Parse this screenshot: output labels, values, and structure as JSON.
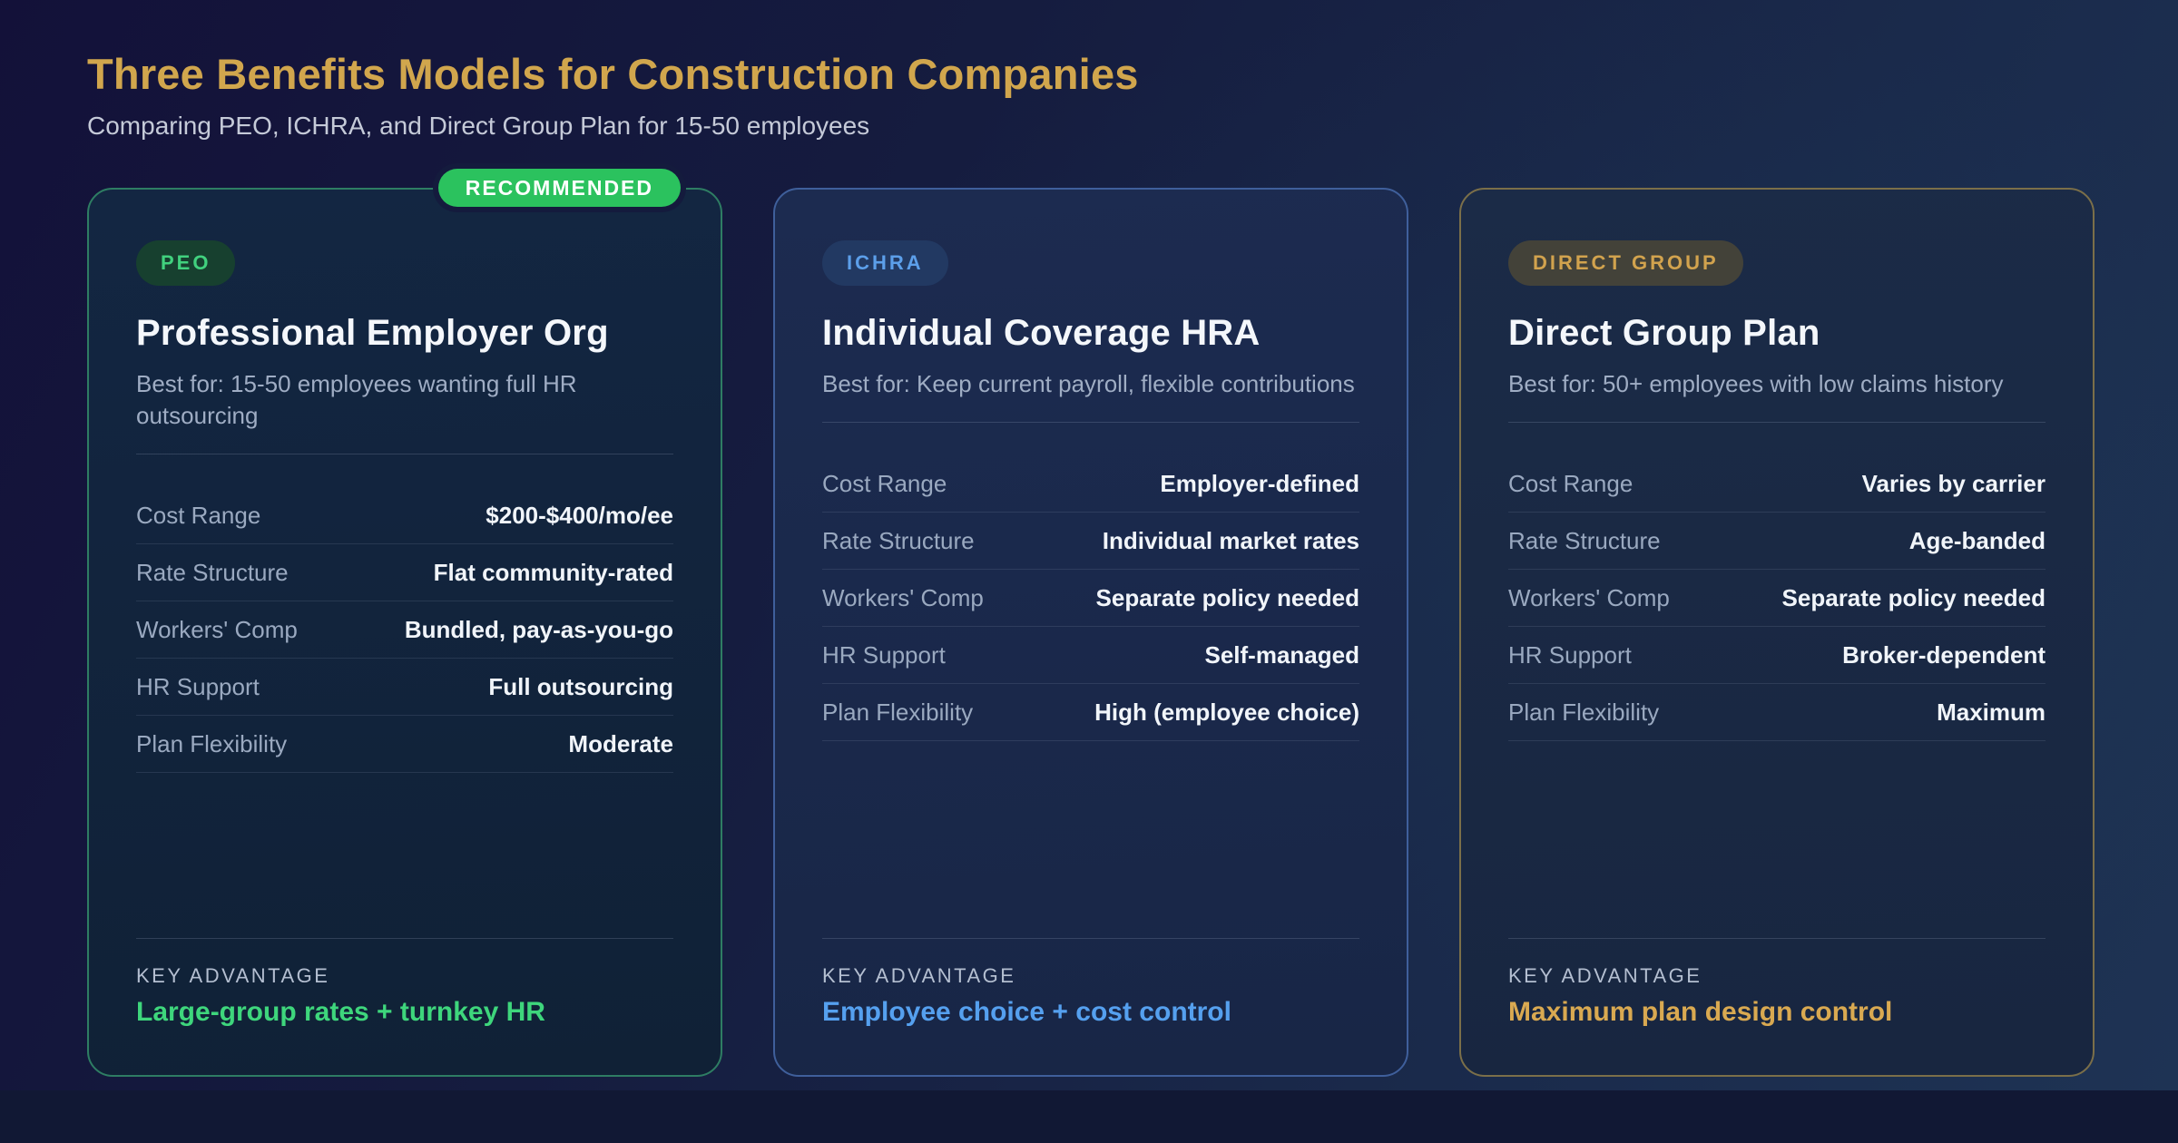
{
  "header": {
    "title": "Three Benefits Models for Construction Companies",
    "subtitle": "Comparing PEO, ICHRA, and Direct Group Plan for 15-50 employees"
  },
  "row_labels": [
    "Cost Range",
    "Rate Structure",
    "Workers' Comp",
    "HR Support",
    "Plan Flexibility"
  ],
  "key_advantage_label": "KEY ADVANTAGE",
  "cards": [
    {
      "id": "peo",
      "ribbon": "RECOMMENDED",
      "badge": "PEO",
      "title": "Professional Employer Org",
      "best_for": "Best for: 15-50 employees wanting full HR outsourcing",
      "values": [
        "$200-$400/mo/ee",
        "Flat community-rated",
        "Bundled, pay-as-you-go",
        "Full outsourcing",
        "Moderate"
      ],
      "key_advantage": "Large-group rates + turnkey HR",
      "accent_color": "#3ed67c"
    },
    {
      "id": "ichra",
      "badge": "ICHRA",
      "title": "Individual Coverage HRA",
      "best_for": "Best for: Keep current payroll, flexible contributions",
      "values": [
        "Employer-defined",
        "Individual market rates",
        "Separate policy needed",
        "Self-managed",
        "High (employee choice)"
      ],
      "key_advantage": "Employee choice + cost control",
      "accent_color": "#55a0ef"
    },
    {
      "id": "direct-group",
      "badge": "DIRECT GROUP",
      "title": "Direct Group Plan",
      "best_for": "Best for: 50+ employees with low claims history",
      "values": [
        "Varies by carrier",
        "Age-banded",
        "Separate policy needed",
        "Broker-dependent",
        "Maximum"
      ],
      "key_advantage": "Maximum plan design control",
      "accent_color": "#d9a951"
    }
  ],
  "colors": {
    "title_gold": "#d1a64d",
    "recommended_badge_bg": "#2bc25e",
    "green_accent": "#3ed67c",
    "blue_accent": "#55a0ef",
    "gold_accent": "#d9a951",
    "background_top": "#131139",
    "background_bottom": "#1e3354"
  }
}
